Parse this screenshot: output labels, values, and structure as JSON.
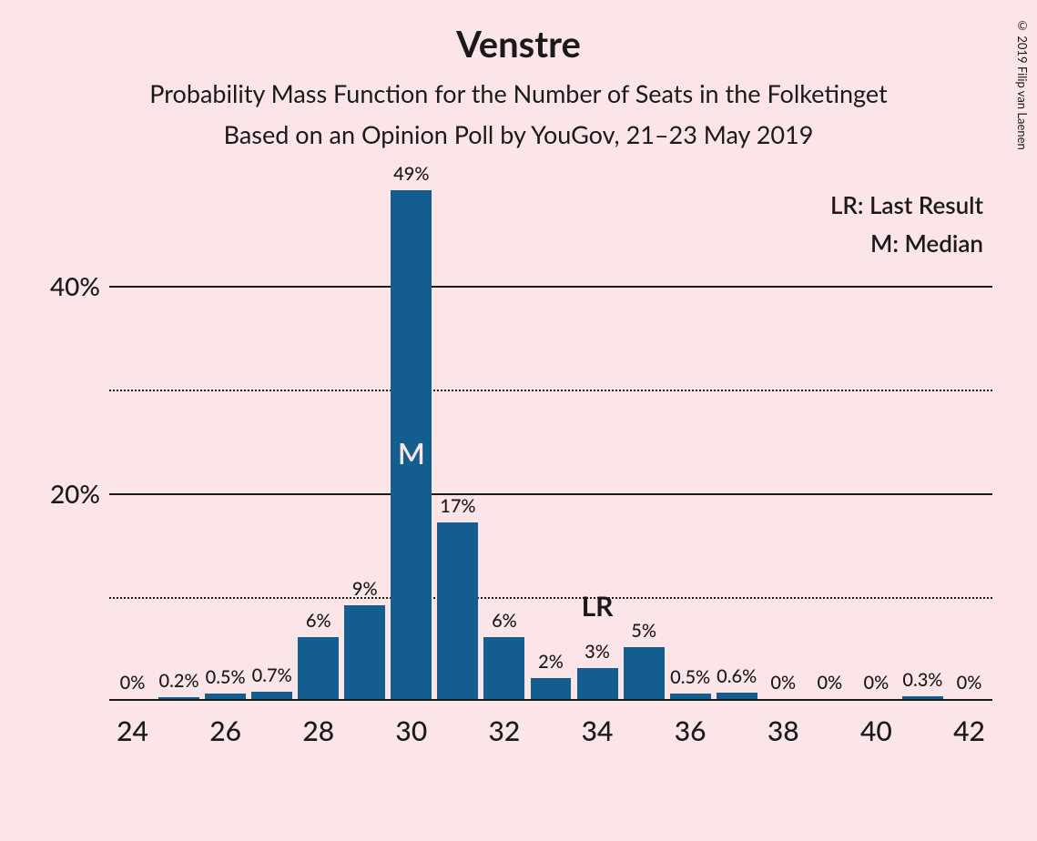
{
  "title": "Venstre",
  "subtitle1": "Probability Mass Function for the Number of Seats in the Folketinget",
  "subtitle2": "Based on an Opinion Poll by YouGov, 21–23 May 2019",
  "copyright": "© 2019 Filip van Laenen",
  "legend": {
    "lr": "LR: Last Result",
    "m": "M: Median"
  },
  "chart": {
    "type": "bar",
    "bar_color": "#135d8f",
    "background_color": "#fce5e9",
    "grid_color": "#1a1a1a",
    "text_color": "#1a1a1a",
    "median_label_color": "#fce5e9",
    "title_fontsize": 40,
    "subtitle_fontsize": 27,
    "ytick_fontsize": 28,
    "xtick_fontsize": 30,
    "barlabel_fontsize": 20,
    "legend_fontsize": 26,
    "ylim": [
      0,
      50
    ],
    "ytick_major": [
      20,
      40
    ],
    "ytick_minor": [
      10,
      30
    ],
    "ytick_labels": [
      "20%",
      "40%"
    ],
    "xticks_shown": [
      24,
      26,
      28,
      30,
      32,
      34,
      36,
      38,
      40,
      42
    ],
    "categories": [
      24,
      25,
      26,
      27,
      28,
      29,
      30,
      31,
      32,
      33,
      34,
      35,
      36,
      37,
      38,
      39,
      40,
      41,
      42
    ],
    "values": [
      0,
      0.2,
      0.5,
      0.7,
      6,
      9,
      49,
      17,
      6,
      2,
      3,
      5,
      0.5,
      0.6,
      0,
      0,
      0,
      0.3,
      0
    ],
    "value_labels": [
      "0%",
      "0.2%",
      "0.5%",
      "0.7%",
      "6%",
      "9%",
      "49%",
      "17%",
      "6%",
      "2%",
      "3%",
      "5%",
      "0.5%",
      "0.6%",
      "0%",
      "0%",
      "0%",
      "0.3%",
      "0%"
    ],
    "median_index": 6,
    "median_marker": "M",
    "lr_index": 10,
    "lr_marker": "LR",
    "bar_width_ratio": 0.88
  }
}
